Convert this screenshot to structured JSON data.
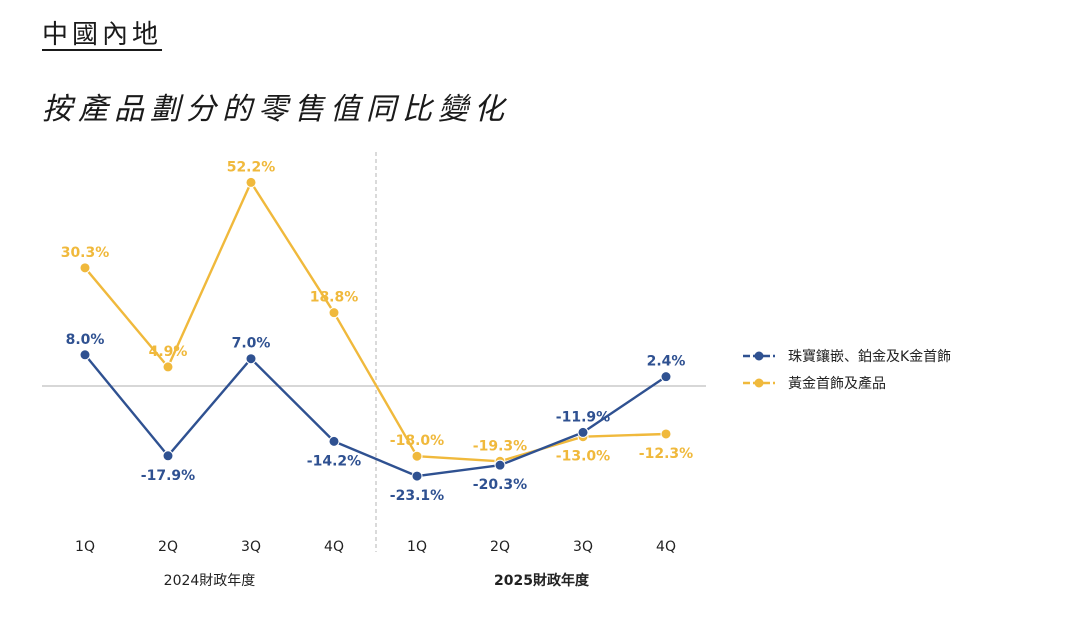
{
  "page": {
    "region_title": "中國內地",
    "chart_title": "按產品劃分的零售值同比變化"
  },
  "colors": {
    "jewelry": "#2f5191",
    "gold": "#f0b93c",
    "zero_line": "#bfbfbf",
    "divider": "#b5b5b5"
  },
  "chart_data": {
    "type": "line",
    "title": "按產品劃分的零售值同比變化",
    "x": [
      "1Q",
      "2Q",
      "3Q",
      "4Q",
      "1Q",
      "2Q",
      "3Q",
      "4Q"
    ],
    "groups": [
      {
        "label": "2024財政年度",
        "bold": false
      },
      {
        "label": "2025財政年度",
        "bold": true
      }
    ],
    "series": [
      {
        "name": "珠寶鑲嵌、鉑金及K金首飾",
        "color": "#2f5191",
        "values": [
          8.0,
          -17.9,
          7.0,
          -14.2,
          -23.1,
          -20.3,
          -11.9,
          2.4
        ],
        "labels": [
          "8.0%",
          "-17.9%",
          "7.0%",
          "-14.2%",
          "-23.1%",
          "-20.3%",
          "-11.9%",
          "2.4%"
        ]
      },
      {
        "name": "黃金首飾及產品",
        "color": "#f0b93c",
        "values": [
          30.3,
          4.9,
          52.2,
          18.8,
          -18.0,
          -19.3,
          -13.0,
          -12.3
        ],
        "labels": [
          "30.3%",
          "4.9%",
          "52.2%",
          "18.8%",
          "-18.0%",
          "-19.3%",
          "-13.0%",
          "-12.3%"
        ]
      }
    ],
    "ylim": [
      -30,
      60
    ],
    "zero_line": true,
    "grid": false,
    "legend_position": "right"
  }
}
